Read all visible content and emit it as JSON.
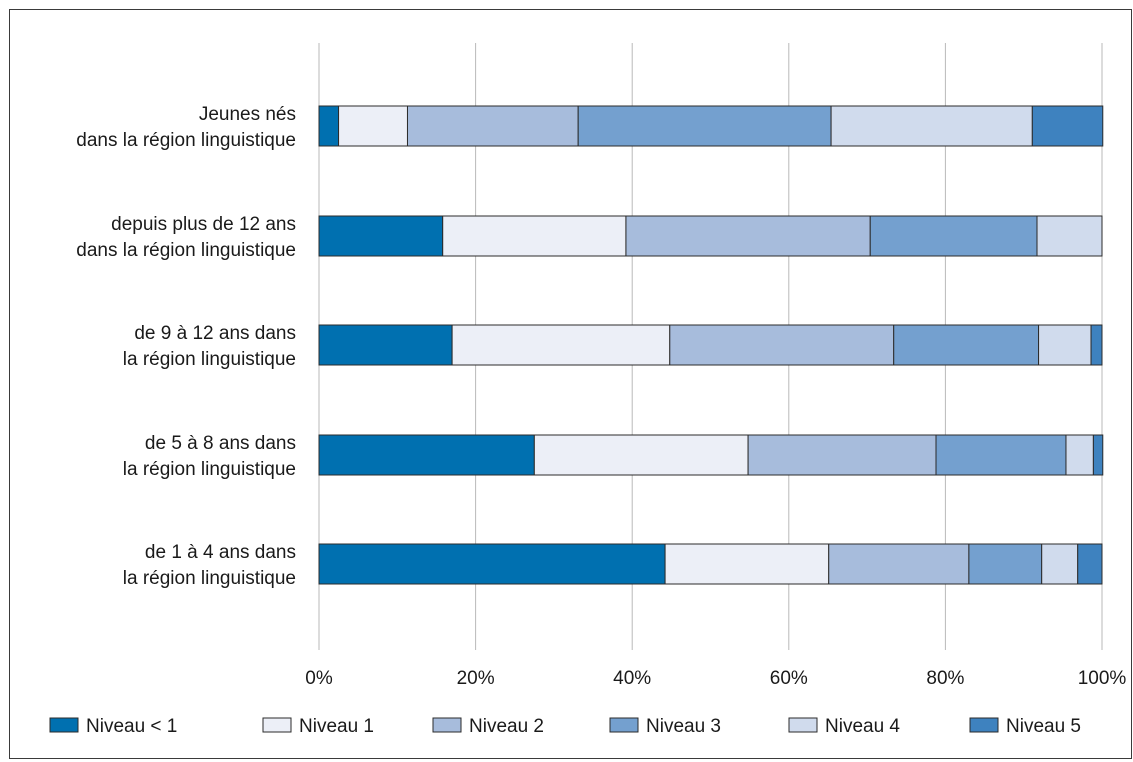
{
  "chart_data": {
    "type": "bar",
    "orientation": "horizontal",
    "stacked": true,
    "percent": true,
    "title": "",
    "xlabel": "",
    "ylabel": "",
    "xlim": [
      0,
      100
    ],
    "grid": true,
    "legend_position": "bottom",
    "categories": [
      [
        "Jeunes nés",
        "dans la région linguistique"
      ],
      [
        "depuis plus de 12 ans",
        "dans la région linguistique"
      ],
      [
        "de 9 à 12 ans dans",
        "la région linguistique"
      ],
      [
        "de 5 à 8 ans dans",
        "la région linguistique"
      ],
      [
        "de 1 à 4 ans dans",
        "la région linguistique"
      ]
    ],
    "x_ticks": [
      "0%",
      "20%",
      "40%",
      "60%",
      "80%",
      "100%"
    ],
    "series": [
      {
        "name": "Niveau < 1",
        "color": "#0070b0",
        "values": [
          2.5,
          15.8,
          17.0,
          27.5,
          44.2
        ]
      },
      {
        "name": "Niveau 1",
        "color": "#eceff7",
        "values": [
          8.8,
          23.4,
          27.8,
          27.3,
          20.9
        ]
      },
      {
        "name": "Niveau 2",
        "color": "#a7bcdc",
        "values": [
          21.8,
          31.2,
          28.6,
          24.0,
          17.9
        ]
      },
      {
        "name": "Niveau 3",
        "color": "#74a0cf",
        "values": [
          32.3,
          21.3,
          18.5,
          16.6,
          9.3
        ]
      },
      {
        "name": "Niveau 4",
        "color": "#d0dbed",
        "values": [
          25.7,
          8.3,
          6.7,
          3.5,
          4.6
        ]
      },
      {
        "name": "Niveau 5",
        "color": "#3e82bf",
        "values": [
          9.0,
          0.0,
          1.4,
          1.2,
          3.1
        ]
      }
    ]
  }
}
